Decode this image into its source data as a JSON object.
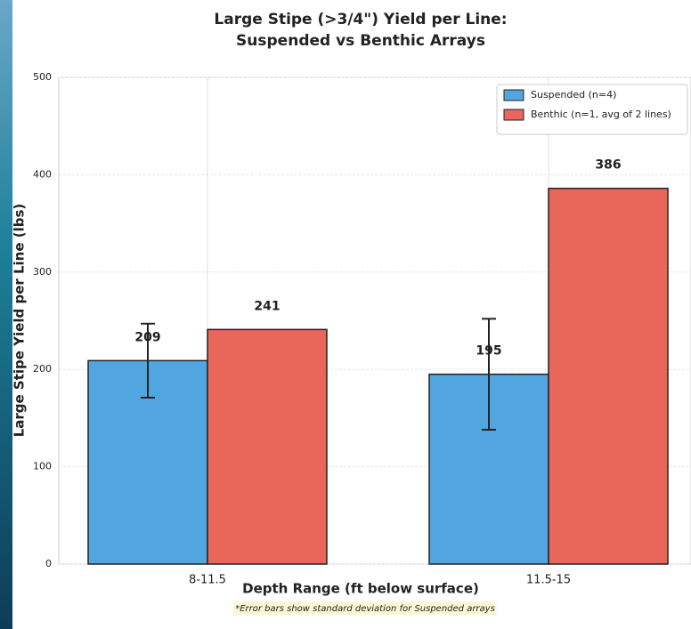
{
  "chart_data": {
    "type": "bar",
    "title": "Large Stipe (>3/4\") Yield per Line:",
    "subtitle": "Suspended vs Benthic Arrays",
    "xlabel": "Depth Range (ft below surface)",
    "ylabel": "Large Stipe Yield per Line (lbs)",
    "footnote": "*Error bars show standard deviation for Suspended arrays",
    "categories": [
      "8-11.5",
      "11.5-15"
    ],
    "series": [
      {
        "name": "Suspended (n=4)",
        "color": "#52a6df",
        "values": [
          209,
          195
        ],
        "errors": [
          38,
          57
        ]
      },
      {
        "name": "Benthic (n=1, avg of 2 lines)",
        "color": "#e8665a",
        "values": [
          241,
          386
        ]
      }
    ],
    "ylim": [
      0,
      500
    ],
    "yticks": [
      0,
      100,
      200,
      300,
      400,
      500
    ],
    "grid": true,
    "legend": "upper right"
  }
}
